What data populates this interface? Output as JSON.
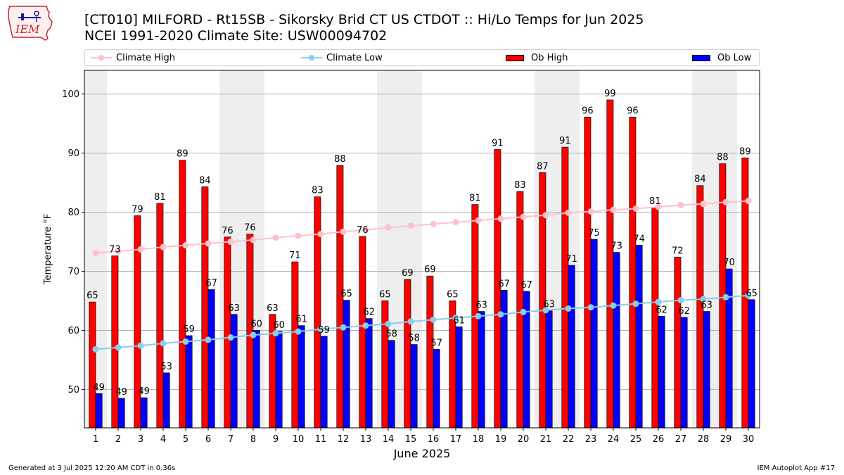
{
  "logo_text": "IEM",
  "title_line1": "[CT010] MILFORD - Rt15SB - Sikorsky Brid CT US  CTDOT :: Hi/Lo Temps for Jun 2025",
  "title_line2": "NCEI 1991-2020 Climate Site: USW00094702",
  "footer_left": "Generated at 3 Jul 2025 12:20 AM CDT in 0.36s",
  "footer_right": "IEM Autoplot App #17",
  "colors": {
    "ob_high": "#ff0000",
    "ob_low": "#0000ff",
    "climate_high": "#ffc0cb",
    "climate_low": "#87ceeb",
    "weekend_shade": "#eeeeee",
    "grid": "#b0b0b0"
  },
  "chart_data": {
    "type": "bar",
    "xlabel": "June 2025",
    "ylabel": "Temperature °F",
    "ylim": [
      43.5,
      104
    ],
    "yticks": [
      50,
      60,
      70,
      80,
      90,
      100
    ],
    "grid": "horizontal",
    "legend_position": "top",
    "shaded_days": [
      1,
      7,
      8,
      14,
      15,
      21,
      22,
      28,
      29
    ],
    "categories": [
      "1",
      "2",
      "3",
      "4",
      "5",
      "6",
      "7",
      "8",
      "9",
      "10",
      "11",
      "12",
      "13",
      "14",
      "15",
      "16",
      "17",
      "18",
      "19",
      "20",
      "21",
      "22",
      "23",
      "24",
      "25",
      "26",
      "27",
      "28",
      "29",
      "30"
    ],
    "series": [
      {
        "name": "Ob High",
        "kind": "bar",
        "values": [
          65,
          73,
          79,
          81,
          89,
          84,
          76,
          76,
          63,
          71,
          83,
          88,
          76,
          65,
          69,
          69,
          65,
          81,
          91,
          83,
          87,
          91,
          96,
          99,
          96,
          81,
          72,
          84,
          88,
          89
        ],
        "bar_heights": [
          64.8,
          72.6,
          79.4,
          81.5,
          88.8,
          84.3,
          75.8,
          76.3,
          62.7,
          71.6,
          82.6,
          87.9,
          75.9,
          65.0,
          68.6,
          69.2,
          65.0,
          81.3,
          90.6,
          83.5,
          86.7,
          91.0,
          96.1,
          99.0,
          96.1,
          80.8,
          72.4,
          84.5,
          88.2,
          89.2
        ]
      },
      {
        "name": "Ob Low",
        "kind": "bar",
        "values": [
          49,
          49,
          49,
          53,
          59,
          67,
          63,
          60,
          60,
          61,
          59,
          65,
          62,
          58,
          58,
          57,
          61,
          63,
          67,
          67,
          63,
          71,
          75,
          73,
          74,
          62,
          62,
          63,
          70,
          65
        ],
        "bar_heights": [
          49.3,
          48.5,
          48.6,
          52.8,
          59.1,
          66.9,
          62.7,
          60.0,
          59.8,
          60.8,
          59.0,
          65.1,
          62.0,
          58.3,
          57.6,
          56.8,
          60.6,
          63.2,
          66.8,
          66.6,
          63.3,
          71.0,
          75.4,
          73.2,
          74.4,
          62.4,
          62.2,
          63.2,
          70.4,
          65.2
        ]
      },
      {
        "name": "Climate High",
        "kind": "line",
        "values": [
          73.1,
          73.4,
          73.7,
          74.1,
          74.4,
          74.7,
          75.0,
          75.3,
          75.7,
          76.0,
          76.3,
          76.7,
          77.0,
          77.4,
          77.7,
          78.0,
          78.3,
          78.6,
          78.9,
          79.2,
          79.5,
          79.9,
          80.1,
          80.4,
          80.6,
          80.9,
          81.2,
          81.4,
          81.7,
          81.9
        ]
      },
      {
        "name": "Climate Low",
        "kind": "line",
        "values": [
          56.8,
          57.1,
          57.4,
          57.8,
          58.1,
          58.4,
          58.8,
          59.2,
          59.5,
          59.8,
          60.2,
          60.5,
          60.8,
          61.1,
          61.5,
          61.8,
          62.1,
          62.4,
          62.7,
          63.1,
          63.4,
          63.7,
          63.9,
          64.2,
          64.5,
          64.8,
          65.1,
          65.3,
          65.6,
          65.9
        ]
      }
    ],
    "tick_labels": [
      "1",
      "2",
      "3",
      "4",
      "5",
      "6",
      "7",
      "8",
      "9",
      "10",
      "11",
      "12",
      "13",
      "14",
      "15",
      "16",
      "17",
      "18",
      "19",
      "20",
      "21",
      "22",
      "23",
      "24",
      "25",
      "26",
      "27",
      "28",
      "29",
      "30"
    ]
  }
}
